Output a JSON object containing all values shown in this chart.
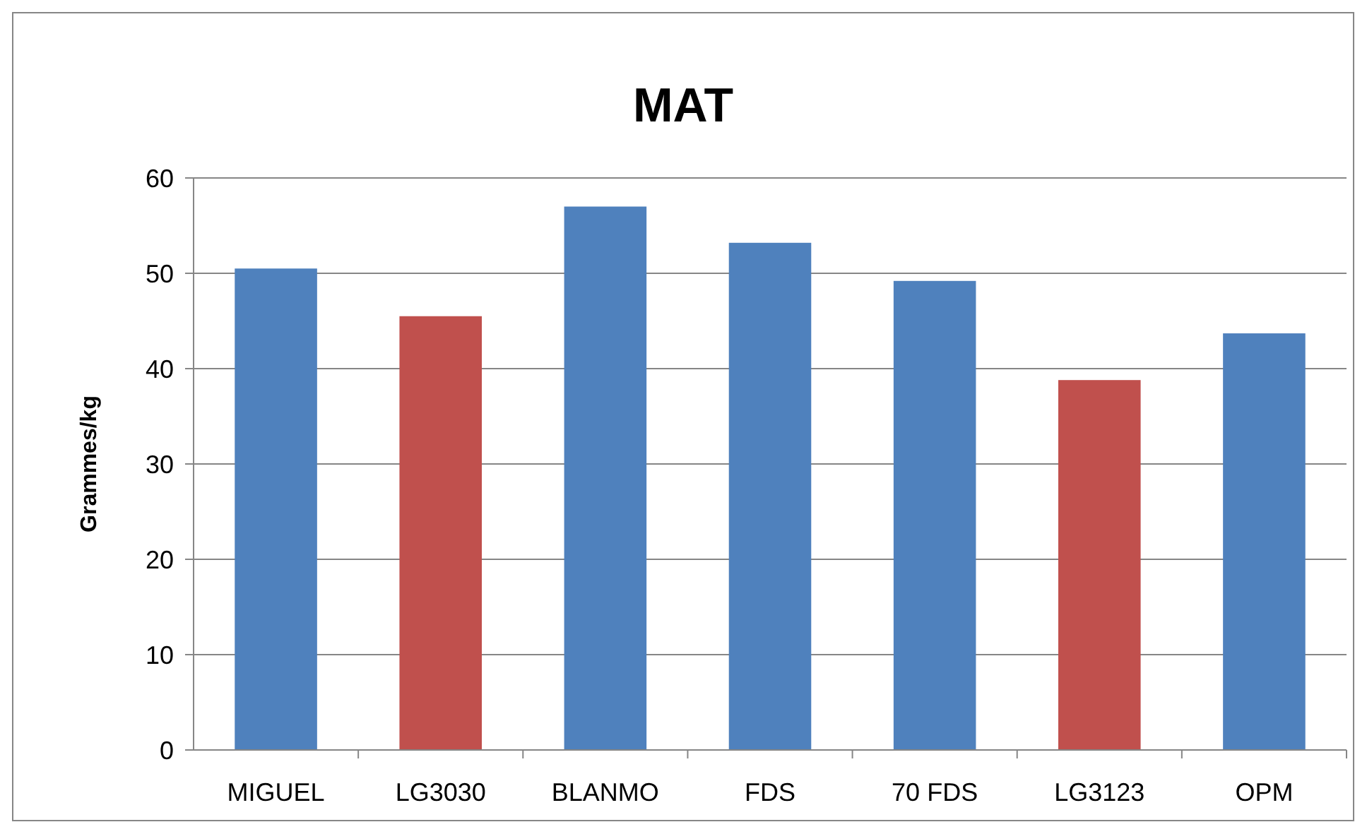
{
  "chart_data": {
    "type": "bar",
    "title": "MAT",
    "ylabel": "Grammes/kg",
    "categories": [
      "MIGUEL",
      "LG3030",
      "BLANMO",
      "FDS",
      "70 FDS",
      "LG3123",
      "OPM"
    ],
    "values": [
      50.5,
      45.5,
      57.0,
      53.2,
      49.2,
      38.8,
      43.7
    ],
    "colors": [
      "#4f81bd",
      "#c0504d",
      "#4f81bd",
      "#4f81bd",
      "#4f81bd",
      "#c0504d",
      "#4f81bd"
    ],
    "ylim": [
      0,
      60
    ],
    "yticks": [
      0,
      10,
      20,
      30,
      40,
      50,
      60
    ],
    "grid": "y"
  }
}
